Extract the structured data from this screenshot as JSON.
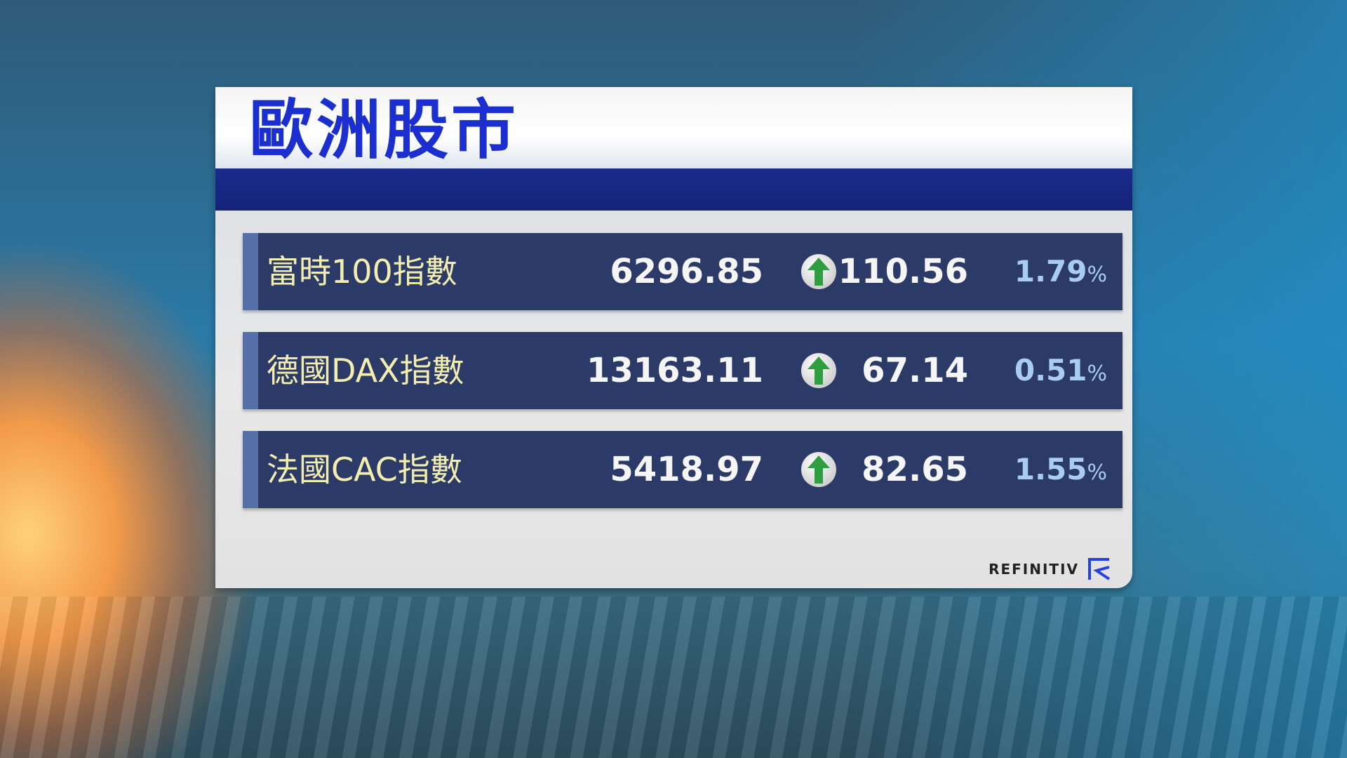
{
  "title": "歐洲股市",
  "rows": [
    {
      "name": "富時100指數",
      "value": "6296.85",
      "direction": "up",
      "change": "110.56",
      "percent": "1.79",
      "percent_sign": "%"
    },
    {
      "name": "德國DAX指數",
      "value": "13163.11",
      "direction": "up",
      "change": "67.14",
      "percent": "0.51",
      "percent_sign": "%"
    },
    {
      "name": "法國CAC指數",
      "value": "5418.97",
      "direction": "up",
      "change": "82.65",
      "percent": "1.55",
      "percent_sign": "%"
    }
  ],
  "source_logo": "REFINITIV",
  "colors": {
    "title": "#1b2fd0",
    "row_bg": "#2b3a66",
    "name_text": "#f3eeb0",
    "percent_text": "#a9cdf0",
    "up_arrow": "#2e9e3e"
  }
}
